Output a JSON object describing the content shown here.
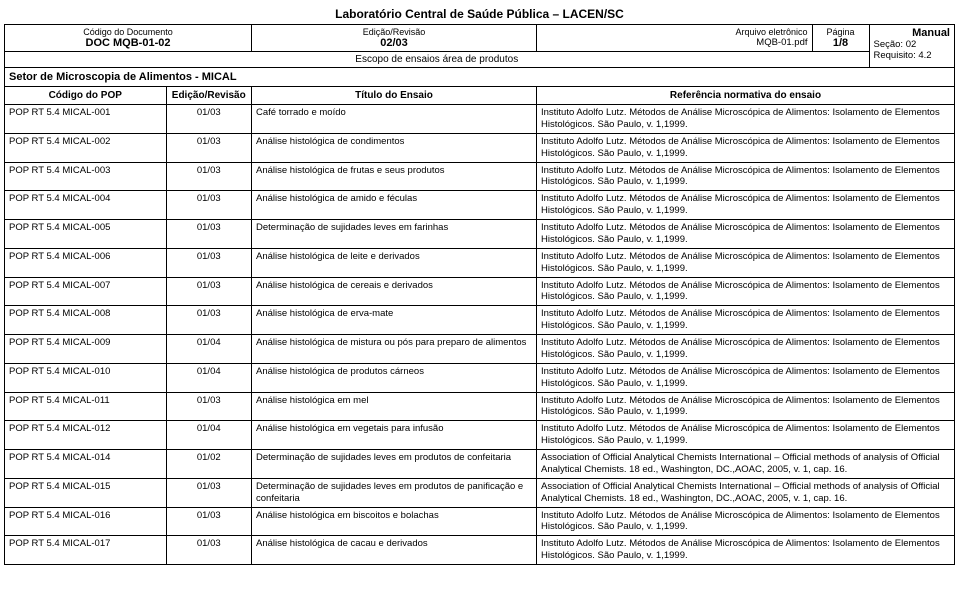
{
  "lab_title": "Laboratório Central de Saúde Pública – LACEN/SC",
  "hdr": {
    "doc_code_label": "Código do Documento",
    "doc_code": "DOC MQB-01-02",
    "edition_label": "Edição/Revisão",
    "edition": "02/03",
    "scope": "Escopo de ensaios área de produtos",
    "file_label": "Arquivo eletrônico",
    "file": "MQB-01.pdf",
    "page_label": "Página",
    "page": "1/8",
    "manual": "Manual",
    "section": "Seção: 02",
    "req": "Requisito: 4.2"
  },
  "sector": "Setor de Microscopia de Alimentos - MICAL",
  "cols": {
    "c1": "Código do POP",
    "c2": "Edição/Revisão",
    "c3": "Título do Ensaio",
    "c4": "Referência normativa do ensaio"
  },
  "ref_std": "Instituto Adolfo Lutz. Métodos de Análise Microscópica de Alimentos: Isolamento de Elementos Histológicos. São Paulo, v. 1,1999.",
  "ref_aoac": "Association of Official Analytical Chemists International – Official methods of analysis of Official Analytical Chemists. 18 ed., Washington, DC.,AOAC, 2005, v. 1, cap. 16.",
  "rows": [
    {
      "code": "POP RT 5.4 MICAL-001",
      "ed": "01/03",
      "title": "Café torrado e moído",
      "ref": "std"
    },
    {
      "code": "POP RT 5.4 MICAL-002",
      "ed": "01/03",
      "title": "Análise histológica de condimentos",
      "ref": "std"
    },
    {
      "code": "POP RT 5.4 MICAL-003",
      "ed": "01/03",
      "title": "Análise histológica de frutas e seus produtos",
      "ref": "std"
    },
    {
      "code": "POP RT 5.4 MICAL-004",
      "ed": "01/03",
      "title": "Análise histológica de amido e féculas",
      "ref": "std"
    },
    {
      "code": "POP RT 5.4 MICAL-005",
      "ed": "01/03",
      "title": "Determinação de sujidades leves em farinhas",
      "ref": "std"
    },
    {
      "code": "POP RT 5.4 MICAL-006",
      "ed": "01/03",
      "title": "Análise histológica de leite e derivados",
      "ref": "std"
    },
    {
      "code": "POP RT 5.4 MICAL-007",
      "ed": "01/03",
      "title": "Análise histológica de cereais e derivados",
      "ref": "std"
    },
    {
      "code": "POP RT 5.4 MICAL-008",
      "ed": "01/03",
      "title": "Análise histológica de erva-mate",
      "ref": "std"
    },
    {
      "code": "POP RT 5.4 MICAL-009",
      "ed": "01/04",
      "title": "Análise histológica de mistura ou pós para  preparo de alimentos",
      "ref": "std"
    },
    {
      "code": "POP RT 5.4 MICAL-010",
      "ed": "01/04",
      "title": "Análise histológica de produtos cárneos",
      "ref": "std"
    },
    {
      "code": "POP RT 5.4 MICAL-011",
      "ed": "01/03",
      "title": "Análise histológica em mel",
      "ref": "std"
    },
    {
      "code": "POP RT 5.4 MICAL-012",
      "ed": "01/04",
      "title": "Análise histológica em vegetais para infusão",
      "ref": "std"
    },
    {
      "code": "POP RT 5.4 MICAL-014",
      "ed": "01/02",
      "title": "Determinação de sujidades leves em produtos de confeitaria",
      "ref": "aoac"
    },
    {
      "code": "POP RT 5.4 MICAL-015",
      "ed": "01/03",
      "title": "Determinação de sujidades leves em produtos de panificação e confeitaria",
      "ref": "aoac"
    },
    {
      "code": "POP RT 5.4 MICAL-016",
      "ed": "01/03",
      "title": "Análise histológica em biscoitos e bolachas",
      "ref": "std"
    },
    {
      "code": "POP RT 5.4 MICAL-017",
      "ed": "01/03",
      "title": "Análise histológica de cacau e derivados",
      "ref": "std"
    }
  ]
}
